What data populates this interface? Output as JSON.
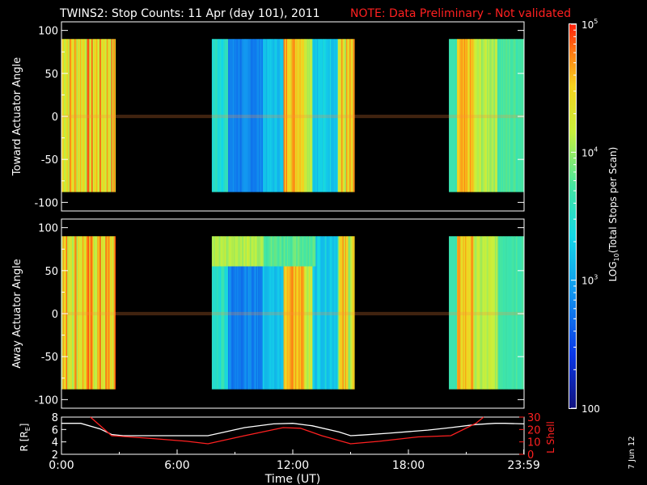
{
  "header": {
    "title": "TWINS2: Stop Counts: 11 Apr (day 101), 2011",
    "note": "NOTE: Data Preliminary - Not validated"
  },
  "side_stamp": "7 Jun 12",
  "colors": {
    "background": "#000000",
    "axes": "#ffffff",
    "note": "#ff2020",
    "lshell": "#ff2020",
    "r_line": "#ffffff"
  },
  "chart_data": [
    {
      "type": "heatmap",
      "ylabel": "Toward Actuator Angle",
      "ylim": [
        -110,
        110
      ],
      "yticks": [
        "-100",
        "-50",
        "0",
        "50",
        "100"
      ],
      "y_coverage": [
        -88,
        90
      ],
      "xlim": [
        0,
        24
      ],
      "data_intervals_hours": [
        [
          -0.1,
          2.8
        ],
        [
          7.8,
          15.2
        ],
        [
          20.1,
          24.0
        ]
      ],
      "colorscale": "rainbow (blue low, red high), log10"
    },
    {
      "type": "heatmap",
      "ylabel": "Away Actuator Angle",
      "ylim": [
        -110,
        110
      ],
      "yticks": [
        "-100",
        "-50",
        "0",
        "50",
        "100"
      ],
      "y_coverage": [
        -88,
        90
      ],
      "xlim": [
        0,
        24
      ],
      "data_intervals_hours": [
        [
          -0.1,
          2.8
        ],
        [
          7.8,
          15.2
        ],
        [
          20.1,
          24.0
        ]
      ],
      "colorscale": "rainbow (blue low, red high), log10"
    },
    {
      "type": "line",
      "xlabel": "Time (UT)",
      "xticks": [
        "0:00",
        "6:00",
        "12:00",
        "18:00",
        "23:59"
      ],
      "xlim": [
        0,
        24
      ],
      "left_axis": {
        "label": "R [RE]",
        "label_main": "R [R",
        "label_sub": "E",
        "label_end": "]",
        "ylim": [
          2,
          8
        ],
        "yticks": [
          "2",
          "4",
          "6",
          "8"
        ]
      },
      "right_axis": {
        "label": "L Shell",
        "ylim": [
          0,
          30
        ],
        "yticks": [
          "0",
          "10",
          "20",
          "30"
        ]
      },
      "series": [
        {
          "name": "R",
          "color": "white",
          "axis": "left",
          "x": [
            0,
            1,
            2,
            2.6,
            3.2,
            4.5,
            6,
            7,
            7.6,
            8.2,
            9.5,
            11,
            12,
            13,
            14.4,
            15,
            15.6,
            17,
            19,
            20.2,
            21.5,
            22.5,
            23,
            24
          ],
          "y": [
            7.0,
            7.0,
            6.1,
            5.2,
            5.0,
            5.0,
            5.0,
            5.0,
            5.0,
            5.4,
            6.3,
            6.9,
            7.0,
            6.6,
            5.6,
            5.0,
            5.1,
            5.4,
            5.9,
            6.3,
            6.8,
            7.0,
            7.0,
            6.9
          ]
        },
        {
          "name": "L Shell",
          "color": "red",
          "axis": "right",
          "x": [
            1.5,
            2.6,
            4.5,
            6.5,
            7.6,
            9.5,
            11.5,
            12.4,
            13.5,
            15,
            16.5,
            18.5,
            20.2,
            21.5,
            21.9
          ],
          "y": [
            30,
            15,
            13,
            10.5,
            8.5,
            15,
            21.5,
            21,
            15,
            8.5,
            10.5,
            14,
            15,
            25,
            30
          ]
        }
      ]
    }
  ],
  "colorbar": {
    "label": "LOG10(Total Stops per Scan)",
    "label_pre": "LOG",
    "label_sub": "10",
    "label_post": "(Total Stops per Scan)",
    "ticks": [
      {
        "value": 100,
        "base": "100",
        "exp": ""
      },
      {
        "value": 1000,
        "base": "10",
        "exp": "3"
      },
      {
        "value": 10000,
        "base": "10",
        "exp": "4"
      },
      {
        "value": 100000,
        "base": "10",
        "exp": "5"
      }
    ],
    "range": [
      100,
      100000
    ]
  }
}
